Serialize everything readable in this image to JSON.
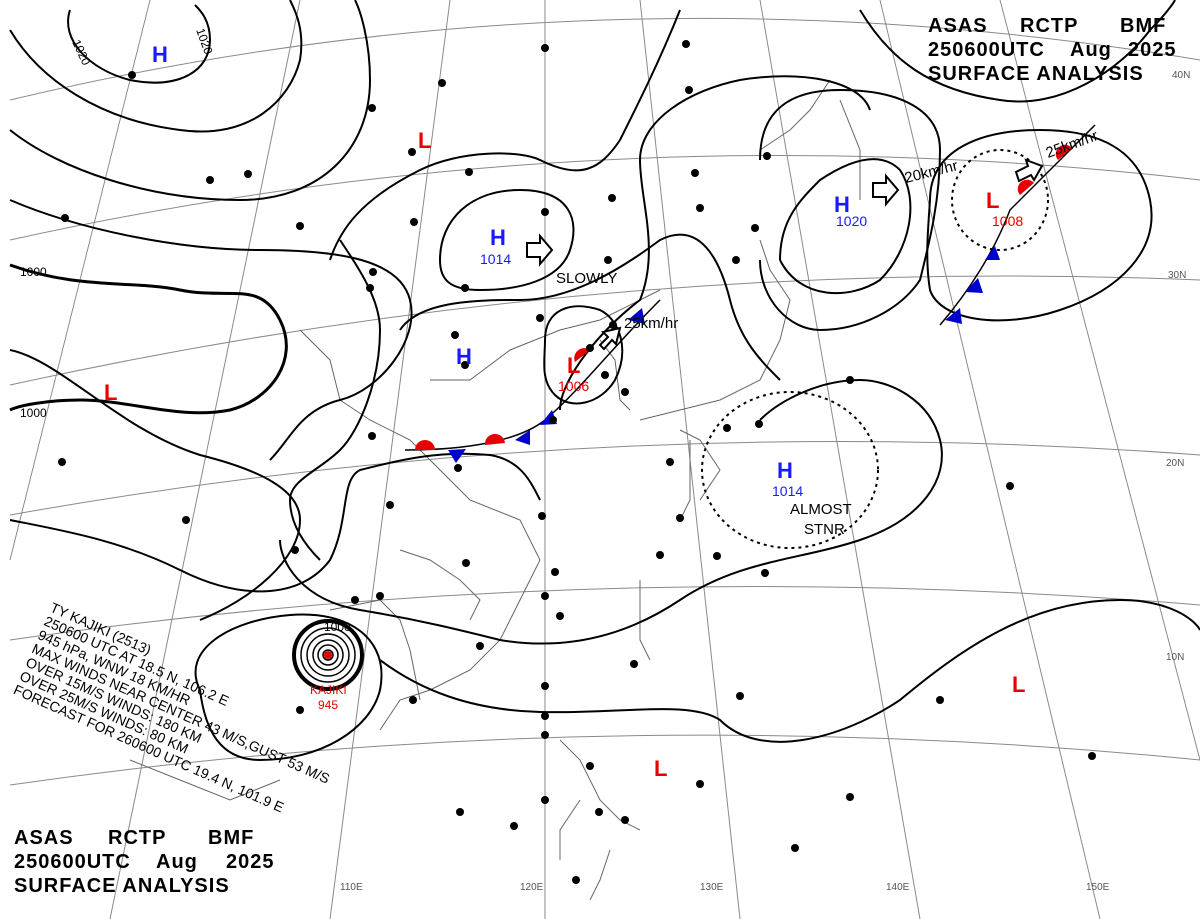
{
  "header_top": {
    "line1": [
      "ASAS",
      "RCTP",
      "BMF"
    ],
    "line2": [
      "250600UTC",
      "Aug",
      "2025"
    ],
    "line3": "SURFACE ANALYSIS"
  },
  "header_bottom": {
    "line1": [
      "ASAS",
      "RCTP",
      "BMF"
    ],
    "line2": [
      "250600UTC",
      "Aug",
      "2025"
    ],
    "line3": "SURFACE ANALYSIS"
  },
  "typhoon": {
    "lines": [
      "TY  KAJIKI (2513)",
      "250600 UTC  AT 18.5 N, 106.2 E",
      "945 hPa, WNW  18 KM/HR",
      "MAX WINDS NEAR CENTER 43 M/S,GUST 53 M/S",
      "OVER 15M/S WINDS: 180 KM",
      "OVER 25M/S WINDS:  80 KM",
      "FORECAST FOR 260600 UTC 19.4 N, 101.9 E"
    ],
    "center_label": "KAJIKI",
    "center_pressure": "945",
    "isobar_label": "1000"
  },
  "pressure_systems": [
    {
      "type": "H",
      "pressure": ""
    },
    {
      "type": "L",
      "pressure": ""
    },
    {
      "type": "L",
      "pressure": ""
    },
    {
      "type": "H",
      "pressure": "1014"
    },
    {
      "type": "H",
      "pressure": ""
    },
    {
      "type": "L",
      "pressure": "1006"
    },
    {
      "type": "H",
      "pressure": "1020"
    },
    {
      "type": "L",
      "pressure": "1008"
    },
    {
      "type": "H",
      "pressure": "1014"
    },
    {
      "type": "L",
      "pressure": ""
    },
    {
      "type": "L",
      "pressure": ""
    }
  ],
  "movements": [
    "SLOWLY",
    "25km/hr",
    "20km/hr",
    "25km/hr",
    "ALMOST",
    "STNR"
  ],
  "isobar_labels": [
    "1020",
    "1020",
    "1000",
    "1000"
  ],
  "longitude_labels": [
    "110E",
    "120E",
    "130E",
    "140E",
    "150E"
  ],
  "latitude_labels": [
    "40N",
    "30N",
    "20N",
    "10N"
  ],
  "colors": {
    "high": "#1a1aff",
    "low": "#e60000",
    "warm_front": "#e60000",
    "cold_front": "#0000cc",
    "isobar": "#000000",
    "grid": "#808080",
    "coast": "#666666"
  }
}
